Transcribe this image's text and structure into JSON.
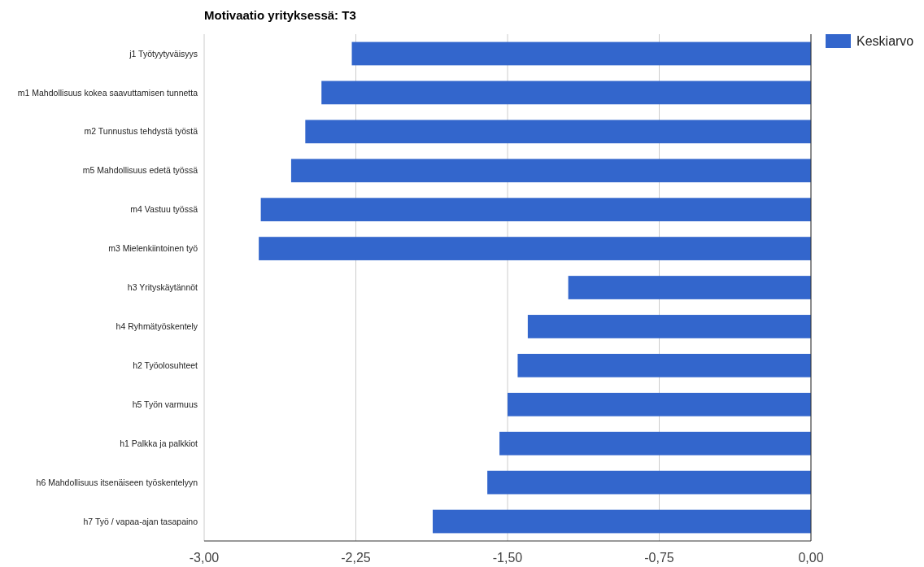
{
  "chart_data": {
    "type": "bar",
    "orientation": "horizontal",
    "title": "Motivaatio yrityksessä: T3",
    "categories": [
      "j1 Työtyytyväisyys",
      "m1 Mahdollisuus kokea saavuttamisen tunnetta",
      "m2 Tunnustus tehdystä työstä",
      "m5 Mahdollisuus edetä työssä",
      "m4 Vastuu työssä",
      "m3 Mielenkiintoinen työ",
      "h3 Yrityskäytännöt",
      "h4 Ryhmätyöskentely",
      "h2 Työolosuhteet",
      "h5 Työn varmuus",
      "h1 Palkka ja palkkiot",
      "h6 Mahdollisuus itsenäiseen työskentelyyn",
      "h7 Työ / vapaa-ajan tasapaino"
    ],
    "series": [
      {
        "name": "Keskiarvo",
        "color": "#3366cc",
        "values": [
          -2.27,
          -2.42,
          -2.5,
          -2.57,
          -2.72,
          -2.73,
          -1.2,
          -1.4,
          -1.45,
          -1.5,
          -1.54,
          -1.6,
          -1.87
        ]
      }
    ],
    "xlim": [
      -3,
      0
    ],
    "xticks": [
      {
        "value": -3,
        "label": "-3,00"
      },
      {
        "value": -2.25,
        "label": "-2,25"
      },
      {
        "value": -1.5,
        "label": "-1,50"
      },
      {
        "value": -0.75,
        "label": "-0,75"
      },
      {
        "value": 0,
        "label": "0,00"
      }
    ],
    "grid": "x",
    "legend": "top right"
  }
}
